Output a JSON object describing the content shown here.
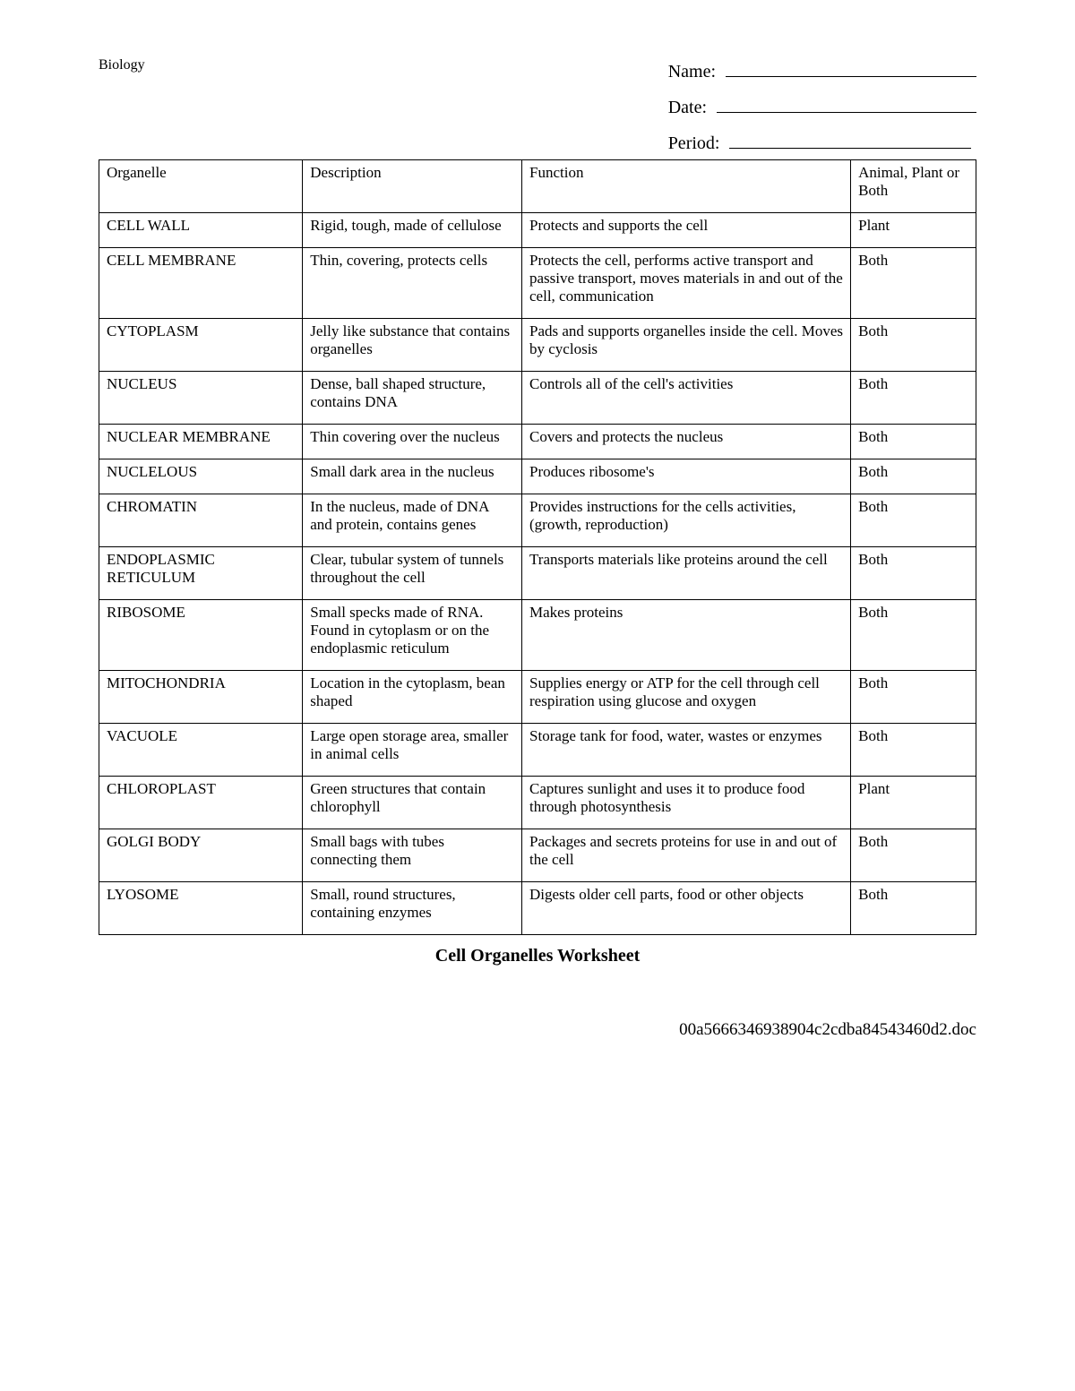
{
  "header": {
    "subject": "Biology",
    "name_label": "Name:",
    "date_label": "Date:",
    "period_label": "Period:"
  },
  "table": {
    "columns": [
      "Organelle",
      "Description",
      "Function",
      "Animal, Plant or Both"
    ],
    "rows": [
      [
        "CELL WALL",
        "Rigid, tough, made of cellulose",
        "Protects and supports the cell",
        "Plant"
      ],
      [
        "CELL MEMBRANE",
        "Thin, covering, protects cells",
        "Protects the cell, performs active transport and passive transport, moves materials in and out of the cell, communication",
        "Both"
      ],
      [
        "CYTOPLASM",
        "Jelly like substance that contains organelles",
        "Pads and supports organelles inside the cell. Moves by cyclosis",
        "Both"
      ],
      [
        "NUCLEUS",
        "Dense, ball shaped structure, contains DNA",
        "Controls all of the cell's activities",
        "Both"
      ],
      [
        "NUCLEAR MEMBRANE",
        "Thin covering over the nucleus",
        "Covers and protects the nucleus",
        "Both"
      ],
      [
        "NUCLELOUS",
        "Small dark area in the nucleus",
        "Produces ribosome's",
        "Both"
      ],
      [
        "CHROMATIN",
        "In the nucleus, made of DNA and protein, contains genes",
        "Provides instructions for the cells activities, (growth, reproduction)",
        "Both"
      ],
      [
        "ENDOPLASMIC RETICULUM",
        "Clear, tubular system of tunnels throughout the cell",
        "Transports materials like proteins around the cell",
        "Both"
      ],
      [
        "RIBOSOME",
        "Small specks made of RNA. Found in cytoplasm or on the endoplasmic reticulum",
        "Makes proteins",
        "Both"
      ],
      [
        "MITOCHONDRIA",
        "Location in the cytoplasm, bean shaped",
        "Supplies energy or ATP for the cell through cell respiration using glucose and oxygen",
        "Both"
      ],
      [
        "VACUOLE",
        "Large open storage area, smaller in animal cells",
        "Storage tank for food, water, wastes or enzymes",
        "Both"
      ],
      [
        "CHLOROPLAST",
        "Green structures that contain chlorophyll",
        "Captures sunlight and uses it to produce food through photosynthesis",
        "Plant"
      ],
      [
        "GOLGI BODY",
        "Small bags with tubes connecting them",
        "Packages and secrets proteins for use in and out of the cell",
        "Both"
      ],
      [
        "LYOSOME",
        "Small, round structures, containing enzymes",
        "Digests older cell parts, food or other objects",
        "Both"
      ]
    ]
  },
  "title": "Cell Organelles Worksheet",
  "footer": "00a5666346938904c2cdba84543460d2.doc"
}
